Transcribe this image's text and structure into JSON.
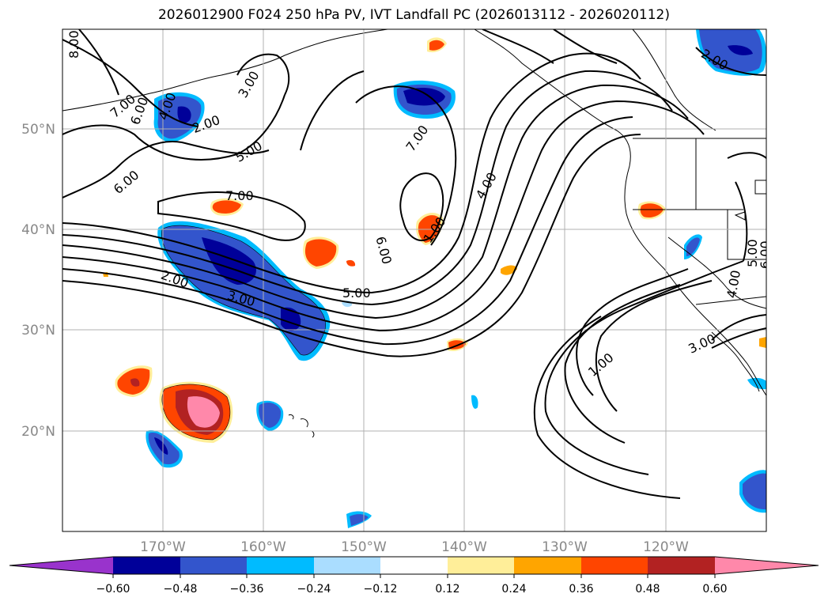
{
  "title": "2026012900 F024 250 hPa PV, IVT Landfall PC (2026013112 - 2026020112)",
  "lat_labels": [
    "50°N",
    "40°N",
    "30°N",
    "20°N"
  ],
  "lon_labels": [
    "170°W",
    "160°W",
    "150°W",
    "140°W",
    "130°W",
    "120°W"
  ],
  "colorbar": {
    "colors": [
      "#9933cc",
      "#000099",
      "#3355cc",
      "#00bbff",
      "#aaddff",
      "#ffffff",
      "#ffee99",
      "#ffa500",
      "#ff4500",
      "#b22222",
      "#ff88aa"
    ],
    "tick_labels": [
      "−0.60",
      "−0.48",
      "−0.36",
      "−0.24",
      "−0.12",
      "0.12",
      "0.24",
      "0.36",
      "0.48",
      "0.60"
    ]
  },
  "contour_labels": {
    "l1": "8.00",
    "l2": "7.00",
    "l3": "6.00",
    "l4": "4.00",
    "l5": "3.00",
    "l6": "2.00",
    "l7": "5.00",
    "l8": "6.00",
    "l9": "7.00",
    "l10": "7.00",
    "l11": "2.00",
    "l12": "3.00",
    "l13": "5.00",
    "l14": "6.00",
    "l15": "1.00",
    "l16": "4.00",
    "l17": "1.00",
    "l18": "3.00",
    "l19": "2.00",
    "l20": "5.00",
    "l21": "6.00",
    "l22": "4.00"
  }
}
